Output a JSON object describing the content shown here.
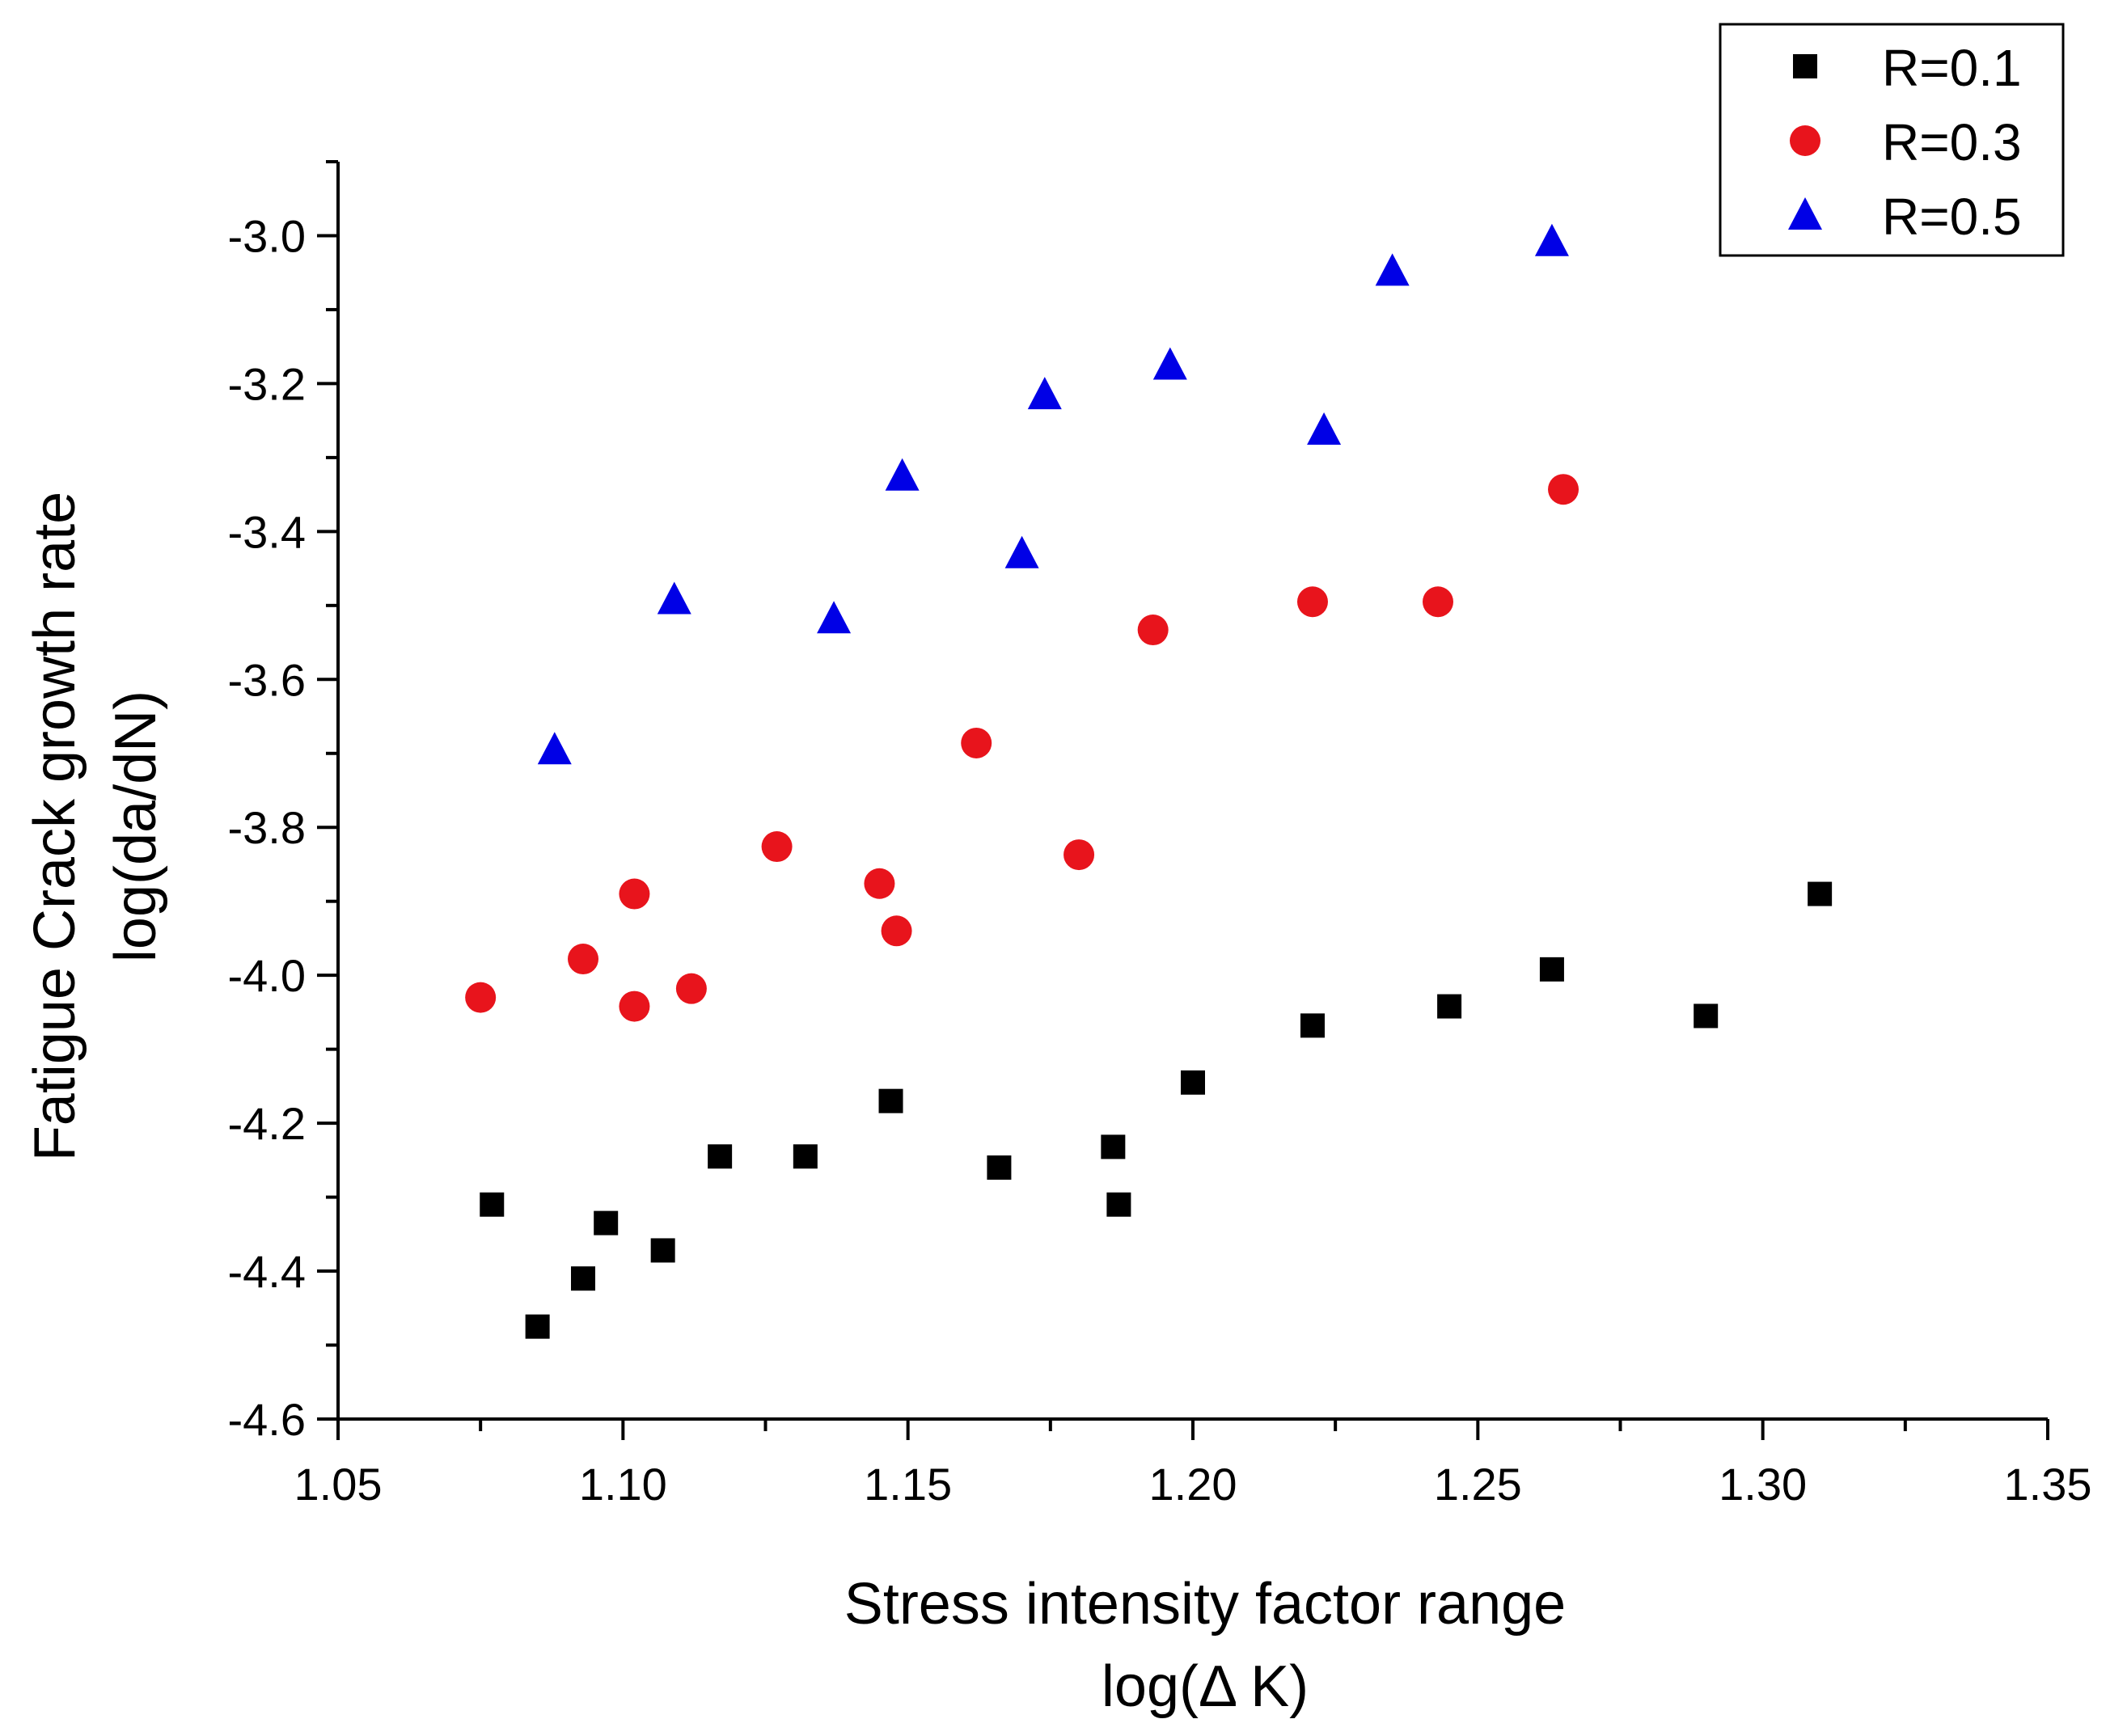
{
  "chart_data": {
    "type": "scatter",
    "xlabel": "Stress intensity factor range",
    "xlabel_unit": "log(Δ K)",
    "ylabel": "Fatigue Crack growth rate",
    "ylabel_unit": "log(da/dN)",
    "xlim": [
      1.05,
      1.35
    ],
    "ylim": [
      -4.6,
      -2.9
    ],
    "x_ticks": [
      1.05,
      1.1,
      1.15,
      1.2,
      1.25,
      1.3,
      1.35
    ],
    "x_tick_labels": [
      "1.05",
      "1.10",
      "1.15",
      "1.20",
      "1.25",
      "1.30",
      "1.35"
    ],
    "y_ticks": [
      -4.6,
      -4.4,
      -4.2,
      -4.0,
      -3.8,
      -3.6,
      -3.4,
      -3.2,
      -3.0
    ],
    "y_tick_labels": [
      "-4.6",
      "-4.4",
      "-4.2",
      "-4.0",
      "-3.8",
      "-3.6",
      "-3.4",
      "-3.2",
      "-3.0"
    ],
    "grid": false,
    "legend_position": "top-right",
    "series": [
      {
        "name": "R=0.1",
        "marker": "square",
        "color": "#000000",
        "points": [
          [
            1.077,
            -4.31
          ],
          [
            1.085,
            -4.475
          ],
          [
            1.093,
            -4.41
          ],
          [
            1.097,
            -4.335
          ],
          [
            1.107,
            -4.372
          ],
          [
            1.117,
            -4.245
          ],
          [
            1.132,
            -4.245
          ],
          [
            1.147,
            -4.17
          ],
          [
            1.166,
            -4.26
          ],
          [
            1.186,
            -4.232
          ],
          [
            1.187,
            -4.31
          ],
          [
            1.2,
            -4.145
          ],
          [
            1.221,
            -4.068
          ],
          [
            1.245,
            -4.042
          ],
          [
            1.263,
            -3.992
          ],
          [
            1.29,
            -4.055
          ],
          [
            1.31,
            -3.89
          ]
        ]
      },
      {
        "name": "R=0.3",
        "marker": "circle",
        "color": "#e8141c",
        "points": [
          [
            1.075,
            -4.03
          ],
          [
            1.093,
            -3.978
          ],
          [
            1.102,
            -3.89
          ],
          [
            1.102,
            -4.042
          ],
          [
            1.112,
            -4.018
          ],
          [
            1.127,
            -3.826
          ],
          [
            1.145,
            -3.876
          ],
          [
            1.148,
            -3.94
          ],
          [
            1.162,
            -3.686
          ],
          [
            1.18,
            -3.837
          ],
          [
            1.193,
            -3.533
          ],
          [
            1.221,
            -3.495
          ],
          [
            1.243,
            -3.495
          ],
          [
            1.265,
            -3.343
          ]
        ]
      },
      {
        "name": "R=0.5",
        "marker": "triangle",
        "color": "#0000e6",
        "points": [
          [
            1.088,
            -3.695
          ],
          [
            1.109,
            -3.492
          ],
          [
            1.137,
            -3.518
          ],
          [
            1.149,
            -3.325
          ],
          [
            1.17,
            -3.43
          ],
          [
            1.174,
            -3.215
          ],
          [
            1.196,
            -3.175
          ],
          [
            1.223,
            -3.263
          ],
          [
            1.235,
            -3.048
          ],
          [
            1.263,
            -3.008
          ]
        ]
      }
    ]
  }
}
